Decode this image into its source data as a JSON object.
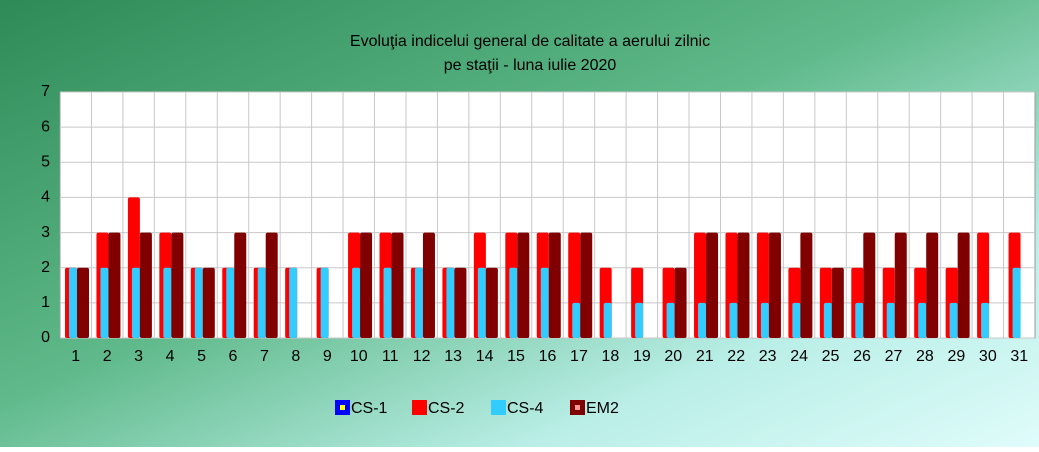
{
  "chart_data": {
    "type": "bar",
    "title": "Evoluţia indicelui general de calitate a aerului zilnic",
    "subtitle": "pe staţii - luna iulie 2020",
    "categories": [
      "1",
      "2",
      "3",
      "4",
      "5",
      "6",
      "7",
      "8",
      "9",
      "10",
      "11",
      "12",
      "13",
      "14",
      "15",
      "16",
      "17",
      "18",
      "19",
      "20",
      "21",
      "22",
      "23",
      "24",
      "25",
      "26",
      "27",
      "28",
      "29",
      "30",
      "31"
    ],
    "series": [
      {
        "name": "CS-1",
        "color": "#0000ff",
        "values": [
          null,
          null,
          null,
          null,
          null,
          null,
          null,
          null,
          null,
          null,
          null,
          null,
          null,
          null,
          null,
          null,
          null,
          null,
          null,
          null,
          null,
          null,
          null,
          null,
          null,
          null,
          null,
          null,
          null,
          null,
          null
        ]
      },
      {
        "name": "CS-2",
        "color": "#ff0000",
        "values": [
          2,
          3,
          4,
          3,
          2,
          2,
          2,
          2,
          2,
          3,
          3,
          2,
          2,
          3,
          3,
          3,
          3,
          2,
          2,
          2,
          3,
          3,
          3,
          2,
          2,
          2,
          2,
          2,
          2,
          3,
          3
        ]
      },
      {
        "name": "CS-4",
        "color": "#33ccff",
        "values": [
          2,
          2,
          2,
          2,
          2,
          2,
          2,
          2,
          2,
          2,
          2,
          2,
          2,
          2,
          2,
          2,
          1,
          1,
          1,
          1,
          1,
          1,
          1,
          1,
          1,
          1,
          1,
          1,
          1,
          1,
          2
        ]
      },
      {
        "name": "EM2",
        "color": "#800000",
        "values": [
          2,
          3,
          3,
          3,
          2,
          3,
          3,
          null,
          null,
          3,
          3,
          3,
          2,
          2,
          3,
          3,
          3,
          null,
          null,
          2,
          3,
          3,
          3,
          3,
          2,
          3,
          3,
          3,
          3,
          null,
          null
        ]
      }
    ],
    "ylim": [
      0,
      7
    ],
    "yticks": [
      0,
      1,
      2,
      3,
      4,
      5,
      6,
      7
    ],
    "grid": true,
    "legend": "bottom"
  }
}
